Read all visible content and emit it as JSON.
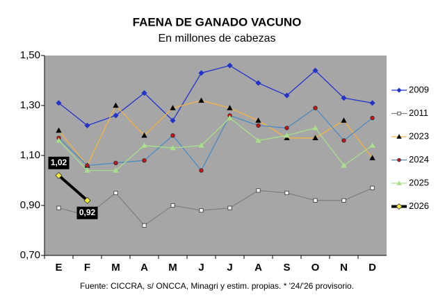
{
  "chart_data": {
    "type": "line",
    "title": "FAENA DE GANADO VACUNO",
    "subtitle": "En millones de cabezas",
    "footnote": "Fuente: CICCRA, s/ ONCCA, Minagri y estim. propias. * '24/'26 provisorio.",
    "categories": [
      "E",
      "F",
      "M",
      "A",
      "M",
      "J",
      "J",
      "A",
      "S",
      "O",
      "N",
      "D"
    ],
    "ylim": [
      0.7,
      1.5
    ],
    "yticks": [
      {
        "value": 0.7,
        "label": "0,70"
      },
      {
        "value": 0.9,
        "label": "0,90"
      },
      {
        "value": 1.1,
        "label": "1,10"
      },
      {
        "value": 1.3,
        "label": "1,30"
      },
      {
        "value": 1.5,
        "label": "1,50"
      }
    ],
    "legend": "right",
    "series": [
      {
        "name": "2009",
        "color": "#2233cc",
        "marker": "diamond",
        "marker_color": "#2233cc",
        "values": [
          1.31,
          1.22,
          1.26,
          1.35,
          1.24,
          1.43,
          1.46,
          1.39,
          1.34,
          1.44,
          1.33,
          1.31
        ]
      },
      {
        "name": "2011",
        "color": "#808080",
        "marker": "square",
        "marker_color": "#ffffff",
        "values": [
          0.89,
          0.86,
          0.95,
          0.82,
          0.9,
          0.88,
          0.89,
          0.96,
          0.95,
          0.92,
          0.92,
          0.97
        ]
      },
      {
        "name": "2023",
        "color": "#f5b342",
        "marker": "triangle",
        "marker_color": "#000000",
        "values": [
          1.2,
          1.06,
          1.3,
          1.18,
          1.29,
          1.32,
          1.29,
          1.24,
          1.17,
          1.17,
          1.24,
          1.09
        ]
      },
      {
        "name": "2024",
        "color": "#4a8bc4",
        "marker": "circle",
        "marker_color": "#cc1111",
        "values": [
          1.17,
          1.06,
          1.07,
          1.08,
          1.18,
          1.04,
          1.26,
          1.22,
          1.21,
          1.29,
          1.16,
          1.25
        ]
      },
      {
        "name": "2025",
        "color": "#a8e08a",
        "marker": "triangle",
        "marker_color": "#a8e08a",
        "values": [
          1.16,
          1.04,
          1.04,
          1.14,
          1.13,
          1.14,
          1.25,
          1.16,
          1.18,
          1.21,
          1.06,
          1.14
        ]
      },
      {
        "name": "2026",
        "color": "#000000",
        "marker": "diamond",
        "marker_color": "#ffee33",
        "width": 4,
        "values": [
          1.02,
          0.92,
          null,
          null,
          null,
          null,
          null,
          null,
          null,
          null,
          null,
          null
        ],
        "value_labels": [
          "1,02",
          "0,92",
          null,
          null,
          null,
          null,
          null,
          null,
          null,
          null,
          null,
          null
        ]
      }
    ]
  }
}
